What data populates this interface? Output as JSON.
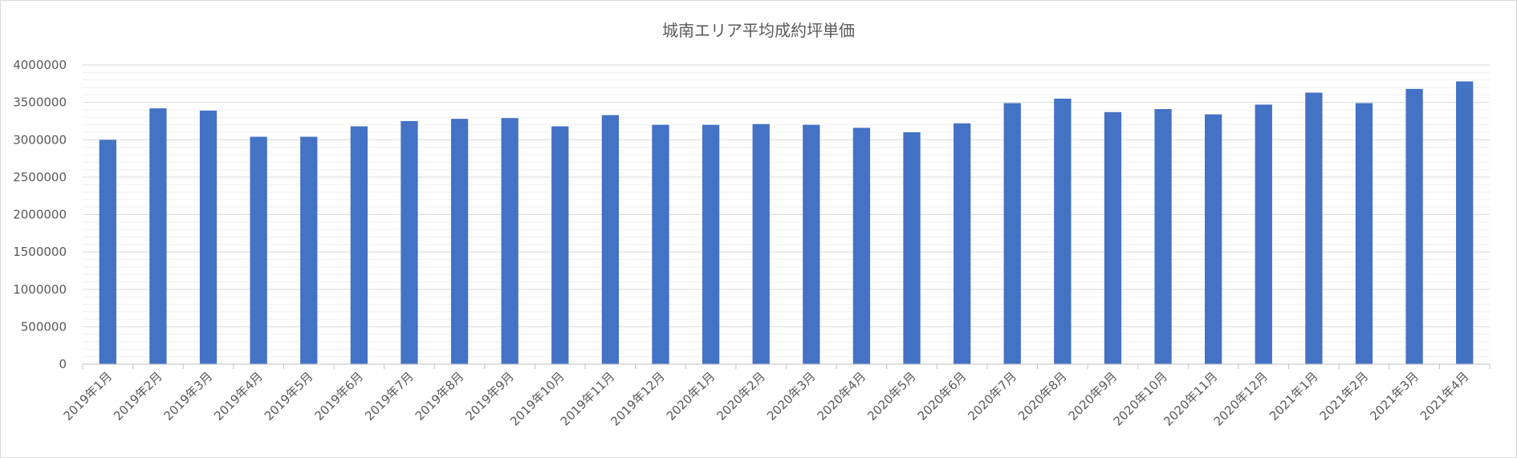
{
  "chart_data": {
    "type": "bar",
    "title": "城南エリア平均成約坪単価",
    "xlabel": "",
    "ylabel": "",
    "ylim": [
      0,
      4000000
    ],
    "yticks": [
      0,
      500000,
      1000000,
      1500000,
      2000000,
      2500000,
      3000000,
      3500000,
      4000000
    ],
    "grid": true,
    "legend": "none",
    "bar_color": "#4472C4",
    "categories": [
      "2019年1月",
      "2019年2月",
      "2019年3月",
      "2019年4月",
      "2019年5月",
      "2019年6月",
      "2019年7月",
      "2019年8月",
      "2019年9月",
      "2019年10月",
      "2019年11月",
      "2019年12月",
      "2020年1月",
      "2020年2月",
      "2020年3月",
      "2020年4月",
      "2020年5月",
      "2020年6月",
      "2020年7月",
      "2020年8月",
      "2020年9月",
      "2020年10月",
      "2020年11月",
      "2020年12月",
      "2021年1月",
      "2021年2月",
      "2021年3月",
      "2021年4月"
    ],
    "values": [
      3000000,
      3420000,
      3390000,
      3040000,
      3040000,
      3180000,
      3250000,
      3280000,
      3290000,
      3180000,
      3330000,
      3200000,
      3200000,
      3210000,
      3200000,
      3160000,
      3100000,
      3220000,
      3490000,
      3550000,
      3370000,
      3410000,
      3340000,
      3470000,
      3630000,
      3490000,
      3680000,
      3780000
    ]
  }
}
